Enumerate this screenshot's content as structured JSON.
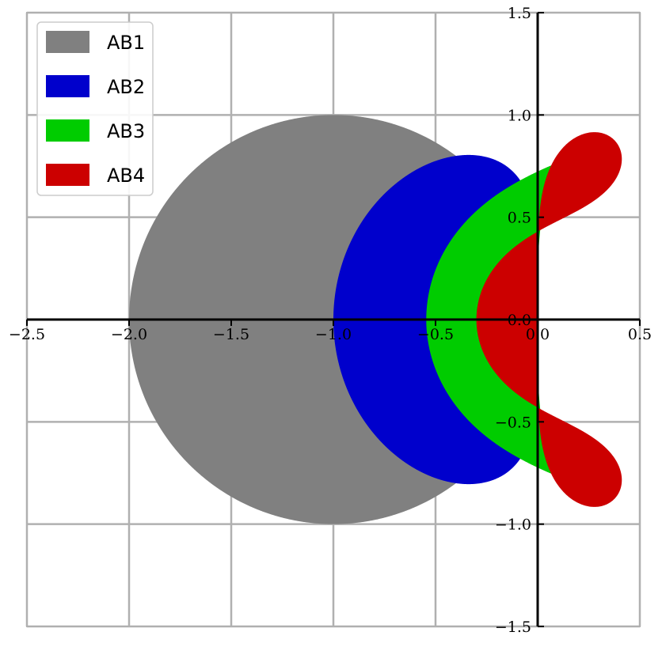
{
  "chart_data": {
    "type": "area",
    "title": "",
    "xlabel": "",
    "ylabel": "",
    "xlim": [
      -2.5,
      0.5
    ],
    "ylim": [
      -1.5,
      1.5
    ],
    "grid": true,
    "legend_position": "top-left",
    "x_ticks": [
      -2.5,
      -2.0,
      -1.5,
      -1.0,
      -0.5,
      0.0,
      0.5
    ],
    "y_ticks": [
      -1.5,
      -1.0,
      -0.5,
      0.0,
      0.5,
      1.0,
      1.5
    ],
    "x_tick_labels": [
      "−2.5",
      "−2.0",
      "−1.5",
      "−1.0",
      "−0.5",
      "0.0",
      "0.5"
    ],
    "y_tick_labels": [
      "−1.5",
      "−1.0",
      "−0.5",
      "0.0",
      "0.5",
      "1.0",
      "1.5"
    ],
    "series": [
      {
        "name": "AB1",
        "color": "#808080",
        "order": 1
      },
      {
        "name": "AB2",
        "color": "#0000cc",
        "order": 2
      },
      {
        "name": "AB3",
        "color": "#00cc00",
        "order": 3
      },
      {
        "name": "AB4",
        "color": "#cc0000",
        "order": 4
      }
    ]
  }
}
